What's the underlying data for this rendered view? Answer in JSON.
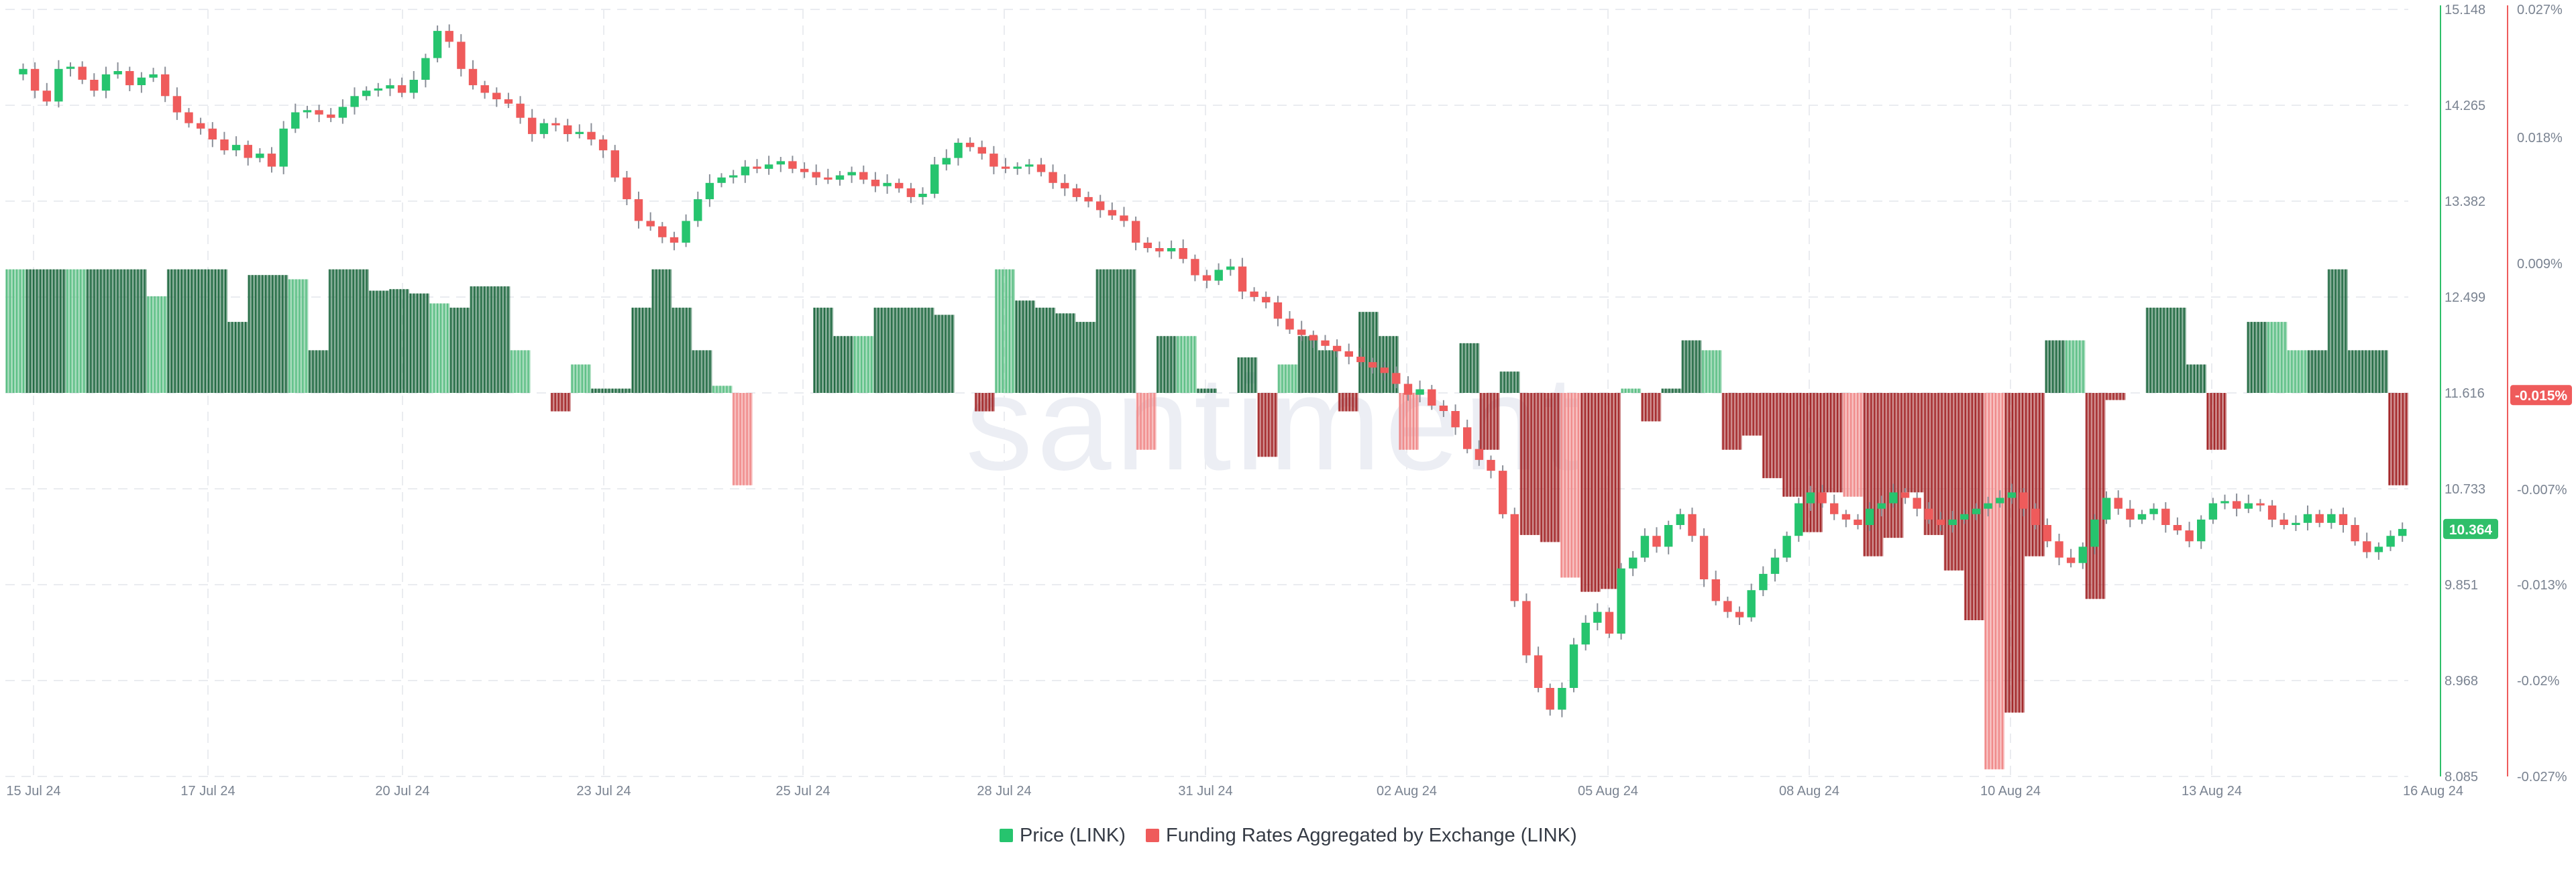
{
  "watermark": "santiment",
  "legend": [
    {
      "label": "Price (LINK)",
      "color": "#26c46e"
    },
    {
      "label": "Funding Rates Aggregated by Exchange (LINK)",
      "color": "#ef5b5b"
    }
  ],
  "colors": {
    "up": "#26c46e",
    "down": "#ef5b5b",
    "fund_pos_light": "#5cbf85",
    "fund_pos_dark": "#236b44",
    "fund_neg_light": "#f08a8a",
    "fund_neg_dark": "#a4292b",
    "price_axis": "#2fbf6a",
    "funding_axis": "#ef5b5b"
  },
  "chart_data": {
    "type": "candlestick+bar",
    "x_ticks": [
      "15 Jul 24",
      "17 Jul 24",
      "20 Jul 24",
      "23 Jul 24",
      "25 Jul 24",
      "28 Jul 24",
      "31 Jul 24",
      "02 Aug 24",
      "05 Aug 24",
      "08 Aug 24",
      "10 Aug 24",
      "13 Aug 24",
      "16 Aug 24"
    ],
    "price_axis": {
      "ticks": [
        "15.148",
        "14.265",
        "13.382",
        "12.499",
        "11.616",
        "10.733",
        "9.851",
        "8.968",
        "8.085"
      ],
      "range": [
        8.085,
        15.148
      ],
      "current": "10.364"
    },
    "funding_axis": {
      "ticks": [
        "0.027%",
        "0.018%",
        "0.009%",
        "0%",
        "-0.007%",
        "-0.013%",
        "-0.02%",
        "-0.027%"
      ],
      "current": "-0.015%"
    },
    "price_series": [
      14.55,
      14.6,
      14.4,
      14.3,
      14.6,
      14.62,
      14.5,
      14.4,
      14.55,
      14.58,
      14.45,
      14.52,
      14.55,
      14.35,
      14.2,
      14.1,
      14.05,
      13.95,
      13.85,
      13.9,
      13.78,
      13.82,
      13.7,
      14.05,
      14.2,
      14.22,
      14.18,
      14.15,
      14.25,
      14.35,
      14.4,
      14.42,
      14.45,
      14.38,
      14.5,
      14.7,
      14.95,
      14.85,
      14.6,
      14.45,
      14.38,
      14.32,
      14.28,
      14.15,
      14.0,
      14.1,
      14.08,
      14.0,
      14.02,
      13.95,
      13.85,
      13.6,
      13.4,
      13.2,
      13.15,
      13.05,
      13.0,
      13.2,
      13.4,
      13.55,
      13.6,
      13.62,
      13.7,
      13.68,
      13.72,
      13.75,
      13.68,
      13.65,
      13.6,
      13.58,
      13.62,
      13.65,
      13.58,
      13.52,
      13.55,
      13.5,
      13.42,
      13.45,
      13.72,
      13.78,
      13.92,
      13.88,
      13.82,
      13.7,
      13.68,
      13.7,
      13.72,
      13.65,
      13.55,
      13.5,
      13.42,
      13.38,
      13.3,
      13.25,
      13.2,
      13.0,
      12.95,
      12.92,
      12.95,
      12.85,
      12.7,
      12.65,
      12.75,
      12.78,
      12.55,
      12.5,
      12.45,
      12.3,
      12.2,
      12.15,
      12.1,
      12.05,
      12.0,
      11.95,
      11.9,
      11.85,
      11.8,
      11.7,
      11.6,
      11.65,
      11.5,
      11.45,
      11.3,
      11.1,
      11.0,
      10.9,
      10.5,
      9.7,
      9.2,
      8.9,
      8.7,
      8.9,
      9.3,
      9.5,
      9.6,
      9.4,
      10.0,
      10.1,
      10.3,
      10.2,
      10.4,
      10.5,
      10.3,
      9.9,
      9.7,
      9.6,
      9.55,
      9.8,
      9.95,
      10.1,
      10.3,
      10.6,
      10.7,
      10.6,
      10.5,
      10.45,
      10.4,
      10.55,
      10.6,
      10.7,
      10.65,
      10.55,
      10.45,
      10.4,
      10.45,
      10.5,
      10.55,
      10.6,
      10.65,
      10.7,
      10.55,
      10.4,
      10.25,
      10.1,
      10.05,
      10.2,
      10.45,
      10.65,
      10.55,
      10.45,
      10.5,
      10.55,
      10.4,
      10.35,
      10.25,
      10.45,
      10.6,
      10.62,
      10.55,
      10.6,
      10.58,
      10.45,
      10.4,
      10.42,
      10.5,
      10.42,
      10.5,
      10.4,
      10.25,
      10.15,
      10.2,
      10.3,
      10.364
    ],
    "funding_values": [
      0.0087,
      0.0087,
      0.0087,
      0.0087,
      0.0087,
      0.0087,
      0.0087,
      0.0068,
      0.0087,
      0.0087,
      0.0087,
      0.005,
      0.0083,
      0.0083,
      0.008,
      0.003,
      0.0087,
      0.0087,
      0.0072,
      0.0073,
      0.007,
      0.0063,
      0.006,
      0.0075,
      0.0075,
      0.003,
      0.0,
      -0.0013,
      0.002,
      0.0003,
      0.0003,
      0.006,
      0.0087,
      0.006,
      0.003,
      0.0005,
      -0.0065,
      0.0,
      0.0,
      0.0,
      0.006,
      0.004,
      0.004,
      0.006,
      0.006,
      0.006,
      0.0055,
      0.0,
      -0.0013,
      0.0087,
      0.0065,
      0.006,
      0.0056,
      0.005,
      0.0087,
      0.0087,
      -0.004,
      0.004,
      0.004,
      0.0003,
      0.0,
      0.0025,
      -0.0045,
      0.002,
      0.004,
      0.003,
      -0.0013,
      0.0057,
      0.004,
      -0.004,
      0.0,
      0.0,
      0.0035,
      -0.004,
      0.0015,
      -0.01,
      -0.0105,
      -0.013,
      -0.014,
      -0.0138,
      0.0003,
      -0.002,
      0.0003,
      0.0037,
      0.003,
      -0.004,
      -0.003,
      -0.006,
      -0.0073,
      -0.0098,
      -0.007,
      -0.0073,
      -0.0115,
      -0.0102,
      -0.007,
      -0.01,
      -0.0125,
      -0.016,
      -0.0265,
      -0.0225,
      -0.0115,
      0.0037,
      0.0037,
      -0.0145,
      -0.0005,
      0.0,
      0.006,
      0.006,
      0.002,
      -0.004,
      0.0,
      0.005,
      0.005,
      0.003,
      0.003,
      0.0087,
      0.003,
      0.003,
      -0.0065
    ]
  }
}
